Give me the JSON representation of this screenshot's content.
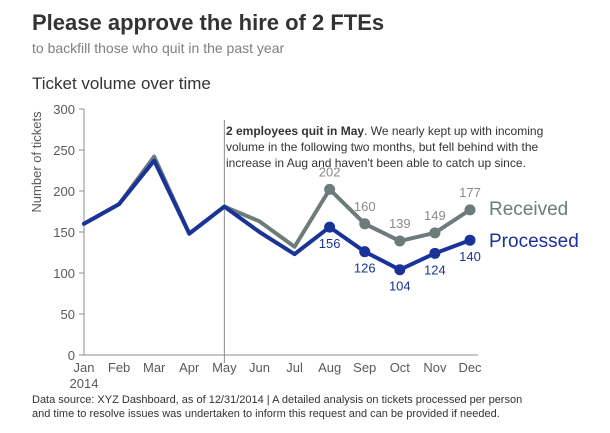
{
  "title": "Please approve the hire of 2 FTEs",
  "subtitle": "to backfill those who quit in the past year",
  "footnote_line1": "Data source: XYZ Dashboard, as of 12/31/2014  |  A detailed analysis on tickets processed per person",
  "footnote_line2": "and time to resolve issues was undertaken to inform this request and can be provided if needed.",
  "annotation": {
    "bold": "2 employees quit in May",
    "line1_rest": ". We nearly kept up with incoming",
    "line2": "volume in the following two months, but fell behind with the",
    "line3": "increase in Aug and haven't been able to catch up since."
  },
  "chart_data": {
    "type": "line",
    "title": "Ticket volume over time",
    "xlabel": "",
    "ylabel": "Number of tickets",
    "ylim": [
      0,
      300
    ],
    "yticks": [
      0,
      50,
      100,
      150,
      200,
      250,
      300
    ],
    "categories": [
      "Jan",
      "Feb",
      "Mar",
      "Apr",
      "May",
      "Jun",
      "Jul",
      "Aug",
      "Sep",
      "Oct",
      "Nov",
      "Dec"
    ],
    "year_label": "2014",
    "event_marker": "May",
    "series": [
      {
        "name": "Received",
        "color": "#6d7b7b",
        "values": [
          160,
          184,
          242,
          148,
          181,
          163,
          132,
          202,
          160,
          139,
          149,
          177
        ],
        "labels_from": 7
      },
      {
        "name": "Processed",
        "color": "#1a3399",
        "values": [
          160,
          184,
          237,
          148,
          181,
          150,
          123,
          156,
          126,
          104,
          124,
          140
        ],
        "labels_from": 7
      }
    ]
  }
}
